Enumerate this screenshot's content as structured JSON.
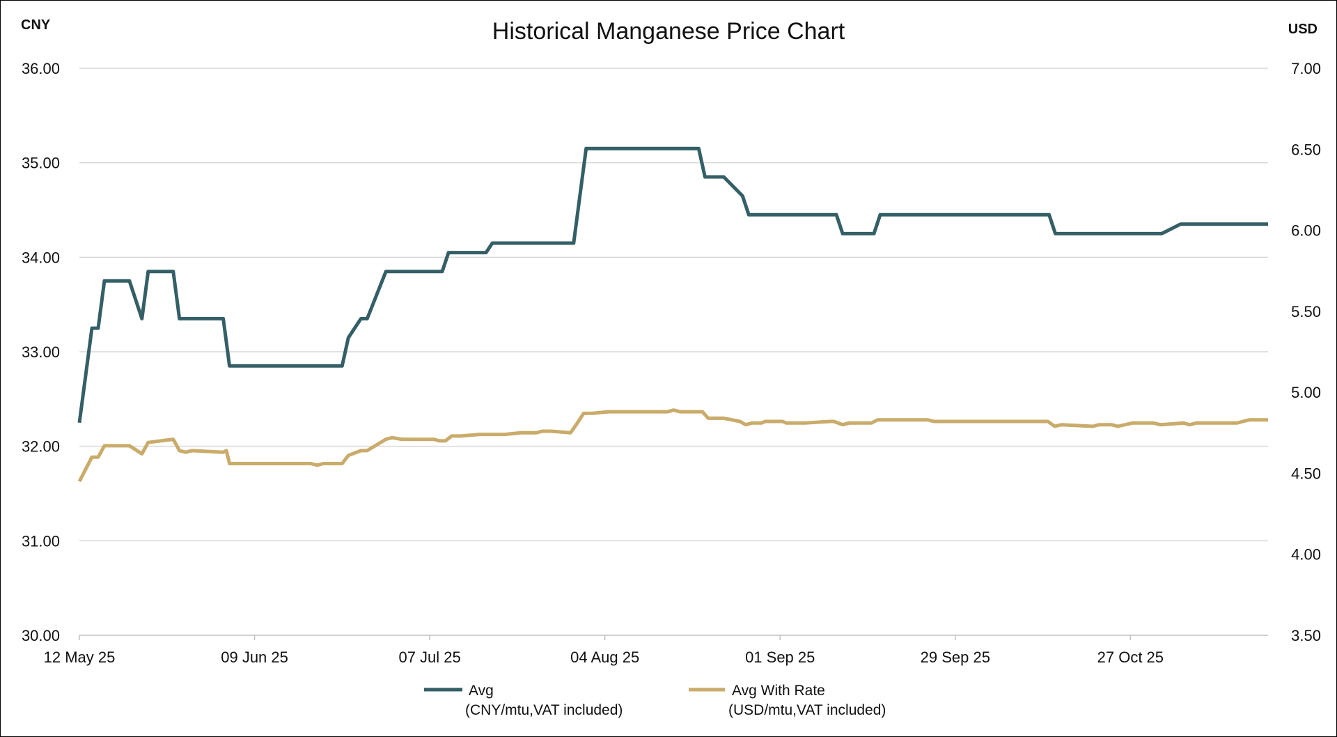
{
  "chart_data": {
    "type": "line",
    "title": "Historical Manganese Price Chart",
    "left_axis": {
      "unit_label": "CNY",
      "range": [
        30,
        36
      ],
      "ticks": [
        "30.00",
        "31.00",
        "32.00",
        "33.00",
        "34.00",
        "35.00",
        "36.00"
      ]
    },
    "right_axis": {
      "unit_label": "USD",
      "range": [
        3.5,
        7.0
      ],
      "ticks": [
        "3.50",
        "4.00",
        "4.50",
        "5.00",
        "5.50",
        "6.00",
        "6.50",
        "7.00"
      ]
    },
    "x_axis": {
      "start_date": "12 May 25",
      "domain_days": [
        0,
        190
      ],
      "ticks": [
        {
          "day": 0,
          "label": "12 May 25"
        },
        {
          "day": 28,
          "label": "09 Jun 25"
        },
        {
          "day": 56,
          "label": "07 Jul 25"
        },
        {
          "day": 84,
          "label": "04 Aug 25"
        },
        {
          "day": 112,
          "label": "01 Sep 25"
        },
        {
          "day": 140,
          "label": "29 Sep 25"
        },
        {
          "day": 168,
          "label": "27 Oct 25"
        }
      ]
    },
    "grid": true,
    "legend_position": "bottom",
    "series": [
      {
        "name": "Avg",
        "unit": "(CNY/mtu,VAT included)",
        "axis": "left",
        "color": "#345f66",
        "points": [
          [
            0,
            32.25
          ],
          [
            2,
            33.25
          ],
          [
            3,
            33.25
          ],
          [
            4,
            33.75
          ],
          [
            8,
            33.75
          ],
          [
            10,
            33.35
          ],
          [
            11,
            33.85
          ],
          [
            15,
            33.85
          ],
          [
            16,
            33.35
          ],
          [
            23,
            33.35
          ],
          [
            24,
            32.85
          ],
          [
            42,
            32.85
          ],
          [
            43,
            33.15
          ],
          [
            45,
            33.35
          ],
          [
            46,
            33.35
          ],
          [
            49,
            33.85
          ],
          [
            58,
            33.85
          ],
          [
            59,
            34.05
          ],
          [
            65,
            34.05
          ],
          [
            66,
            34.15
          ],
          [
            79,
            34.15
          ],
          [
            81,
            35.15
          ],
          [
            99,
            35.15
          ],
          [
            100,
            34.85
          ],
          [
            103,
            34.85
          ],
          [
            106,
            34.65
          ],
          [
            107,
            34.45
          ],
          [
            121,
            34.45
          ],
          [
            122,
            34.25
          ],
          [
            127,
            34.25
          ],
          [
            128,
            34.45
          ],
          [
            155,
            34.45
          ],
          [
            156,
            34.25
          ],
          [
            173,
            34.25
          ],
          [
            176,
            34.35
          ],
          [
            190,
            34.35
          ]
        ]
      },
      {
        "name": "Avg With Rate",
        "unit": "(USD/mtu,VAT included)",
        "axis": "right",
        "color": "#c9ab6a",
        "points": [
          [
            0,
            4.45
          ],
          [
            2,
            4.6
          ],
          [
            3,
            4.6
          ],
          [
            4,
            4.67
          ],
          [
            8,
            4.67
          ],
          [
            10,
            4.62
          ],
          [
            11,
            4.69
          ],
          [
            15,
            4.71
          ],
          [
            16,
            4.64
          ],
          [
            17,
            4.63
          ],
          [
            18,
            4.64
          ],
          [
            23,
            4.63
          ],
          [
            23.5,
            4.64
          ],
          [
            24,
            4.56
          ],
          [
            37,
            4.56
          ],
          [
            38,
            4.55
          ],
          [
            39,
            4.56
          ],
          [
            42,
            4.56
          ],
          [
            43,
            4.61
          ],
          [
            45,
            4.64
          ],
          [
            46,
            4.64
          ],
          [
            49,
            4.71
          ],
          [
            50,
            4.72
          ],
          [
            51.5,
            4.71
          ],
          [
            56.7,
            4.71
          ],
          [
            57.5,
            4.7
          ],
          [
            58.5,
            4.7
          ],
          [
            59.5,
            4.73
          ],
          [
            61,
            4.73
          ],
          [
            64,
            4.74
          ],
          [
            68,
            4.74
          ],
          [
            70.6,
            4.75
          ],
          [
            73,
            4.75
          ],
          [
            74,
            4.76
          ],
          [
            75.4,
            4.76
          ],
          [
            78.5,
            4.75
          ],
          [
            79.6,
            4.81
          ],
          [
            80.6,
            4.87
          ],
          [
            82,
            4.87
          ],
          [
            84.5,
            4.88
          ],
          [
            94,
            4.88
          ],
          [
            95,
            4.89
          ],
          [
            96,
            4.88
          ],
          [
            99.6,
            4.88
          ],
          [
            100.5,
            4.84
          ],
          [
            103,
            4.84
          ],
          [
            105.6,
            4.82
          ],
          [
            106.5,
            4.8
          ],
          [
            107.5,
            4.81
          ],
          [
            109,
            4.81
          ],
          [
            109.6,
            4.82
          ],
          [
            112.4,
            4.82
          ],
          [
            113,
            4.81
          ],
          [
            116,
            4.81
          ],
          [
            120,
            4.82
          ],
          [
            120.6,
            4.82
          ],
          [
            122,
            4.8
          ],
          [
            123,
            4.81
          ],
          [
            126.6,
            4.81
          ],
          [
            127.6,
            4.83
          ],
          [
            135.6,
            4.83
          ],
          [
            136.6,
            4.82
          ],
          [
            154.8,
            4.82
          ],
          [
            155.9,
            4.79
          ],
          [
            157,
            4.8
          ],
          [
            162,
            4.79
          ],
          [
            163,
            4.8
          ],
          [
            165,
            4.8
          ],
          [
            166,
            4.79
          ],
          [
            168.3,
            4.81
          ],
          [
            171.7,
            4.81
          ],
          [
            172.8,
            4.8
          ],
          [
            176.5,
            4.81
          ],
          [
            177.5,
            4.8
          ],
          [
            178.5,
            4.81
          ],
          [
            185,
            4.81
          ],
          [
            187,
            4.83
          ],
          [
            190,
            4.83
          ]
        ]
      }
    ]
  }
}
